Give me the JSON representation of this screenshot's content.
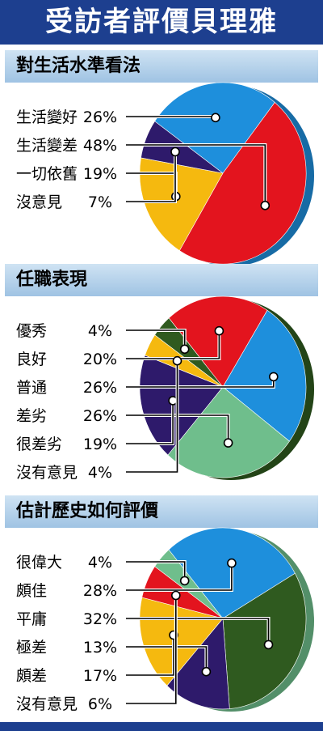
{
  "title": "受訪者評價貝理雅",
  "colors": {
    "header_bg": "#1d3f8f",
    "red": "#e3141e",
    "blue": "#1e8fdc",
    "yellow": "#f5b90f",
    "purple": "#2e1a6b",
    "dark_green": "#2f5a1f",
    "light_green": "#6fbe8c"
  },
  "chart_data": [
    {
      "type": "pie",
      "title": "對生活水準看法",
      "categories": [
        "生活變好",
        "生活變差",
        "一切依舊",
        "沒意見"
      ],
      "values": [
        26,
        48,
        19,
        7
      ],
      "labels": [
        "26%",
        "48%",
        "19%",
        "7%"
      ],
      "slice_colors": [
        "#1e8fdc",
        "#e3141e",
        "#f5b90f",
        "#2e1a6b"
      ]
    },
    {
      "type": "pie",
      "title": "任職表現",
      "categories": [
        "優秀",
        "良好",
        "普通",
        "差劣",
        "很差劣",
        "沒有意見"
      ],
      "values": [
        4,
        20,
        26,
        26,
        19,
        4
      ],
      "labels": [
        "4%",
        "20%",
        "26%",
        "26%",
        "19%",
        "4%"
      ],
      "slice_colors": [
        "#2f5a1f",
        "#e3141e",
        "#1e8fdc",
        "#6fbe8c",
        "#2e1a6b",
        "#f5b90f"
      ]
    },
    {
      "type": "pie",
      "title": "估計歷史如何評價",
      "categories": [
        "很偉大",
        "頗佳",
        "平庸",
        "極差",
        "頗差",
        "沒有意見"
      ],
      "values": [
        4,
        28,
        32,
        13,
        17,
        6
      ],
      "labels": [
        "4%",
        "28%",
        "32%",
        "13%",
        "17%",
        "6%"
      ],
      "slice_colors": [
        "#6fbe8c",
        "#1e8fdc",
        "#2f5a1f",
        "#2e1a6b",
        "#f5b90f",
        "#e3141e"
      ]
    }
  ]
}
